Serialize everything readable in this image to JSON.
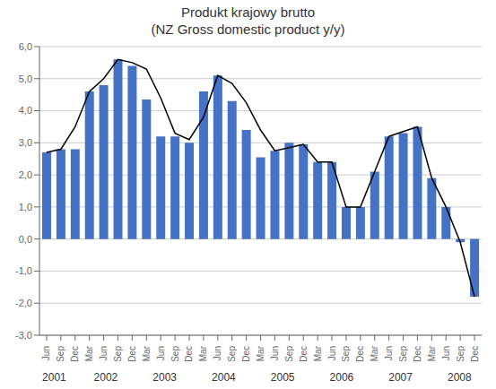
{
  "chart_data": {
    "type": "bar",
    "title": "Produkt krajowy brutto",
    "subtitle": "(NZ Gross domestic product y/y)",
    "categories": [
      "Jun",
      "Sep",
      "Dec",
      "Mar",
      "Jun",
      "Sep",
      "Dec",
      "Mar",
      "Jun",
      "Sep",
      "Dec",
      "Mar",
      "Jun",
      "Sep",
      "Dec",
      "Mar",
      "Jun",
      "Sep",
      "Dec",
      "Mar",
      "Jun",
      "Sep",
      "Dec",
      "Mar",
      "Jun",
      "Sep",
      "Dec",
      "Mar",
      "Jun",
      "Sep",
      "Dec"
    ],
    "series": [
      {
        "type": "bar",
        "color": "#4472C4",
        "values": [
          2.7,
          2.8,
          2.8,
          4.6,
          4.8,
          5.6,
          5.4,
          4.35,
          3.2,
          3.2,
          3.0,
          4.6,
          5.1,
          4.3,
          3.4,
          2.55,
          2.75,
          3.0,
          2.95,
          2.4,
          2.4,
          1.0,
          1.0,
          2.1,
          3.2,
          3.3,
          3.5,
          1.9,
          1.0,
          -0.1,
          -1.8
        ]
      },
      {
        "type": "line",
        "color": "#000000",
        "values": [
          2.7,
          2.8,
          3.5,
          4.6,
          5.0,
          5.6,
          5.5,
          5.3,
          4.4,
          3.3,
          3.1,
          3.8,
          5.1,
          4.85,
          4.25,
          3.4,
          2.75,
          2.85,
          2.95,
          2.4,
          2.4,
          1.0,
          1.0,
          2.1,
          3.2,
          3.35,
          3.5,
          1.9,
          1.0,
          -0.1,
          -1.8
        ]
      }
    ],
    "ylim": [
      -3.0,
      6.0
    ],
    "yticks": [
      {
        "value": -3.0,
        "label": "-3,0"
      },
      {
        "value": -2.0,
        "label": "-2,0"
      },
      {
        "value": -1.0,
        "label": "-1,0"
      },
      {
        "value": 0.0,
        "label": "0,0"
      },
      {
        "value": 1.0,
        "label": "1,0"
      },
      {
        "value": 2.0,
        "label": "2,0"
      },
      {
        "value": 3.0,
        "label": "3,0"
      },
      {
        "value": 4.0,
        "label": "4,0"
      },
      {
        "value": 5.0,
        "label": "5,0"
      },
      {
        "value": 6.0,
        "label": "6,0"
      }
    ],
    "annotations": [
      {
        "text": "2001",
        "x": 1.0
      },
      {
        "text": "2002",
        "x": 4.5
      },
      {
        "text": "2003",
        "x": 8.5
      },
      {
        "text": "2004",
        "x": 12.5
      },
      {
        "text": "2005",
        "x": 16.5
      },
      {
        "text": "2006",
        "x": 20.5
      },
      {
        "text": "2007",
        "x": 24.5
      },
      {
        "text": "2008",
        "x": 28.5
      }
    ],
    "grid": true
  }
}
